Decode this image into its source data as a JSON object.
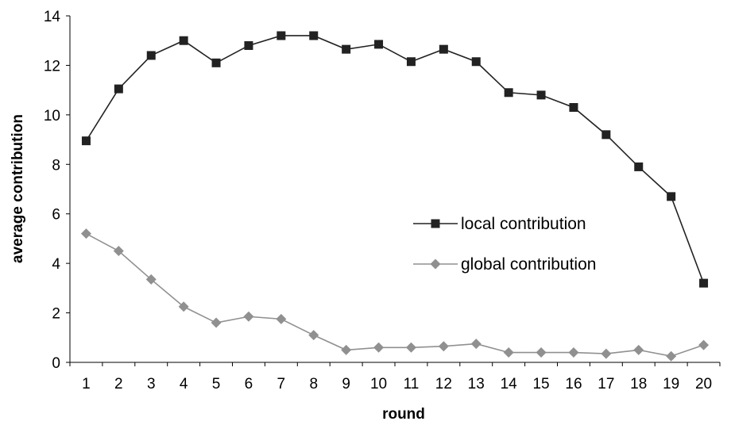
{
  "chart_data": {
    "type": "line",
    "x": [
      1,
      2,
      3,
      4,
      5,
      6,
      7,
      8,
      9,
      10,
      11,
      12,
      13,
      14,
      15,
      16,
      17,
      18,
      19,
      20
    ],
    "xlabel": "round",
    "ylabel": "average contribution",
    "ylim": [
      0,
      14
    ],
    "yticks": [
      0,
      2,
      4,
      6,
      8,
      10,
      12,
      14
    ],
    "grid": false,
    "legend_position": "center-right",
    "series": [
      {
        "name": "local contribution",
        "color": "#222222",
        "marker": "square",
        "values": [
          8.95,
          11.05,
          12.4,
          13.0,
          12.1,
          12.8,
          13.2,
          13.2,
          12.65,
          12.85,
          12.15,
          12.65,
          12.15,
          10.9,
          10.8,
          10.3,
          9.2,
          7.9,
          6.7,
          3.2
        ]
      },
      {
        "name": "global contribution",
        "color": "#909090",
        "marker": "diamond",
        "values": [
          5.2,
          4.5,
          3.35,
          2.25,
          1.6,
          1.85,
          1.75,
          1.1,
          0.5,
          0.6,
          0.6,
          0.65,
          0.75,
          0.4,
          0.4,
          0.4,
          0.35,
          0.5,
          0.25,
          0.7
        ]
      }
    ]
  }
}
